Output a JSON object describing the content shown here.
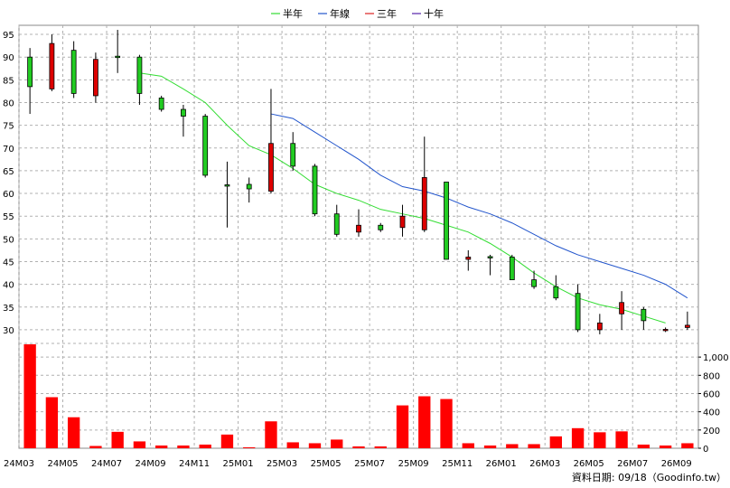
{
  "chart_data": {
    "type": "candlestick",
    "legend": [
      {
        "name": "半年",
        "color": "#33dd33"
      },
      {
        "name": "年線",
        "color": "#2255cc"
      },
      {
        "name": "三年",
        "color": "#dd2222"
      },
      {
        "name": "十年",
        "color": "#5522aa"
      }
    ],
    "legend_position": "top-center",
    "grid": true,
    "categories": [
      "24M03",
      "24M04",
      "24M05",
      "24M06",
      "24M07",
      "24M08",
      "24M09",
      "24M10",
      "24M11",
      "24M12",
      "25M01",
      "25M02",
      "25M03",
      "25M04",
      "25M05",
      "25M06",
      "25M07",
      "25M08",
      "25M09",
      "25M10",
      "25M11",
      "25M12",
      "26M01",
      "26M02",
      "26M03",
      "26M04",
      "26M05",
      "26M06",
      "26M07",
      "26M08",
      "26M09"
    ],
    "x_tick_labels": [
      "24M03",
      "24M05",
      "24M07",
      "24M09",
      "24M11",
      "25M01",
      "25M03",
      "25M05",
      "25M07",
      "25M09",
      "25M11",
      "26M01",
      "26M03",
      "26M05",
      "26M07",
      "26M09"
    ],
    "price_axis": {
      "ylim": [
        27,
        97
      ],
      "ticks": [
        30,
        35,
        40,
        45,
        50,
        55,
        60,
        65,
        70,
        75,
        80,
        85,
        90,
        95
      ]
    },
    "volume_axis": {
      "ylim": [
        0,
        1150
      ],
      "ticks": [
        0,
        200,
        400,
        600,
        800,
        1000
      ],
      "tick_labels": [
        "0",
        "200",
        "400",
        "600",
        "800",
        "1,000"
      ]
    },
    "candles": [
      {
        "open": 83.5,
        "close": 90.0,
        "high": 92.0,
        "low": 77.5
      },
      {
        "open": 93.0,
        "close": 83.0,
        "high": 95.0,
        "low": 82.5
      },
      {
        "open": 82.0,
        "close": 91.5,
        "high": 93.5,
        "low": 81.0
      },
      {
        "open": 89.5,
        "close": 81.5,
        "high": 91.0,
        "low": 80.0
      },
      {
        "open": 90.0,
        "close": 90.2,
        "high": 96.0,
        "low": 86.5
      },
      {
        "open": 82.0,
        "close": 90.0,
        "high": 90.5,
        "low": 79.5
      },
      {
        "open": 78.5,
        "close": 81.0,
        "high": 81.5,
        "low": 78.0
      },
      {
        "open": 77.0,
        "close": 78.5,
        "high": 79.5,
        "low": 72.5
      },
      {
        "open": 64.0,
        "close": 77.0,
        "high": 77.5,
        "low": 63.5
      },
      {
        "open": 61.7,
        "close": 61.9,
        "high": 67.0,
        "low": 52.5
      },
      {
        "open": 61.0,
        "close": 62.0,
        "high": 63.5,
        "low": 58.0
      },
      {
        "open": 71.0,
        "close": 60.5,
        "high": 83.0,
        "low": 60.0
      },
      {
        "open": 66.0,
        "close": 71.0,
        "high": 73.5,
        "low": 65.0
      },
      {
        "open": 55.5,
        "close": 66.0,
        "high": 66.5,
        "low": 55.0
      },
      {
        "open": 51.0,
        "close": 55.5,
        "high": 57.5,
        "low": 50.5
      },
      {
        "open": 53.0,
        "close": 51.5,
        "high": 56.5,
        "low": 50.5
      },
      {
        "open": 52.0,
        "close": 53.0,
        "high": 53.5,
        "low": 51.5
      },
      {
        "open": 55.0,
        "close": 52.5,
        "high": 57.5,
        "low": 50.5
      },
      {
        "open": 63.5,
        "close": 52.0,
        "high": 72.5,
        "low": 51.5
      },
      {
        "open": 45.5,
        "close": 62.5,
        "high": 62.5,
        "low": 45.5
      },
      {
        "open": 46.0,
        "close": 45.5,
        "high": 47.5,
        "low": 43.0
      },
      {
        "open": 46.0,
        "close": 46.1,
        "high": 46.5,
        "low": 42.0
      },
      {
        "open": 41.0,
        "close": 46.0,
        "high": 46.5,
        "low": 41.0
      },
      {
        "open": 39.5,
        "close": 41.0,
        "high": 43.0,
        "low": 39.0
      },
      {
        "open": 37.0,
        "close": 39.5,
        "high": 42.0,
        "low": 36.5
      },
      {
        "open": 30.0,
        "close": 38.0,
        "high": 40.0,
        "low": 29.5
      },
      {
        "open": 31.5,
        "close": 30.0,
        "high": 33.5,
        "low": 29.0
      },
      {
        "open": 36.0,
        "close": 33.5,
        "high": 38.5,
        "low": 30.0
      },
      {
        "open": 32.0,
        "close": 34.5,
        "high": 35.0,
        "low": 30.0
      },
      {
        "open": 30.1,
        "close": 30.0,
        "high": 30.5,
        "low": 29.5
      },
      {
        "open": 31.0,
        "close": 30.5,
        "high": 34.0,
        "low": 30.0
      }
    ],
    "volume": [
      1140,
      560,
      340,
      25,
      180,
      75,
      30,
      30,
      40,
      150,
      10,
      295,
      65,
      55,
      95,
      20,
      20,
      470,
      570,
      540,
      55,
      30,
      45,
      45,
      130,
      220,
      175,
      185,
      40,
      30,
      55
    ],
    "ma_half_year": {
      "start_index": 5,
      "values": [
        86.5,
        85.8,
        83.0,
        80.0,
        75.0,
        70.5,
        68.5,
        65.5,
        62.0,
        60.0,
        58.5,
        56.5,
        55.5,
        54.5,
        53.0,
        51.5,
        49.0,
        46.0,
        42.5,
        39.5,
        37.0,
        35.5,
        34.5,
        33.0,
        31.5
      ]
    },
    "ma_year": {
      "start_index": 11,
      "values": [
        77.5,
        76.5,
        73.5,
        70.5,
        67.5,
        64.0,
        61.5,
        60.5,
        59.0,
        57.0,
        55.5,
        53.5,
        51.0,
        48.5,
        46.5,
        45.0,
        43.5,
        42.0,
        40.0,
        37.0
      ]
    }
  },
  "source_label": "資料日期: 09/18（Goodinfo.tw）"
}
